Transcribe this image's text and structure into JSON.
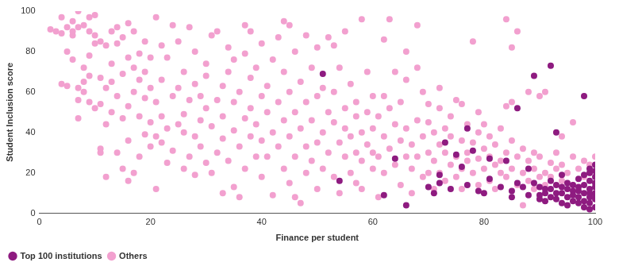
{
  "chart_data": {
    "type": "scatter",
    "x_label": "Finance per student",
    "y_label": "Student Inclusion score",
    "xlim": [
      0,
      100
    ],
    "xticks": [
      0,
      20,
      40,
      60,
      80,
      100
    ],
    "ylim": [
      0,
      100
    ],
    "yticks": [
      0,
      20,
      40,
      60,
      80,
      100
    ],
    "grid": false,
    "legend": "bottom-left",
    "marker": "circle",
    "series": [
      {
        "name": "Top 100 institutions",
        "color": "#8e1b80",
        "x": [
          51,
          54,
          62,
          64,
          66,
          70,
          71,
          72,
          72,
          73,
          74,
          75,
          76,
          77,
          77,
          78,
          79,
          80,
          81,
          81,
          83,
          84,
          85,
          85,
          86,
          86,
          87,
          88,
          88,
          89,
          89,
          90,
          90,
          91,
          91,
          92,
          92,
          92,
          93,
          93,
          93,
          94,
          94,
          94,
          95,
          95,
          95,
          96,
          96,
          96,
          97,
          97,
          97,
          97,
          98,
          98,
          98,
          98,
          98,
          99,
          99,
          99,
          99,
          99,
          99,
          100,
          100,
          100,
          100,
          100,
          100,
          100,
          99,
          98,
          97,
          96,
          95,
          94,
          93,
          92,
          91,
          90,
          100,
          99,
          100
        ],
        "values": [
          69,
          16,
          9,
          27,
          4,
          13,
          10,
          15,
          19,
          35,
          12,
          29,
          23,
          42,
          14,
          31,
          11,
          10,
          27,
          17,
          13,
          26,
          11,
          8,
          15,
          52,
          13,
          22,
          9,
          68,
          15,
          9,
          13,
          6,
          10,
          73,
          12,
          8,
          14,
          7,
          40,
          10,
          5,
          19,
          12,
          8,
          15,
          6,
          11,
          9,
          13,
          5,
          8,
          17,
          10,
          6,
          58,
          14,
          3,
          12,
          8,
          20,
          5,
          16,
          22,
          10,
          7,
          13,
          18,
          3,
          21,
          15,
          2,
          19,
          11,
          14,
          4,
          13,
          10,
          16,
          12,
          7,
          24,
          10,
          9
        ]
      },
      {
        "name": "Others",
        "color": "#f2a0cf",
        "x": [
          2,
          4,
          4,
          5,
          5,
          6,
          6,
          6,
          7,
          7,
          7,
          7,
          8,
          8,
          8,
          9,
          9,
          9,
          9,
          10,
          10,
          10,
          10,
          4,
          6,
          8,
          3,
          5,
          7,
          9,
          11,
          11,
          11,
          11,
          12,
          12,
          12,
          12,
          13,
          13,
          13,
          13,
          14,
          14,
          14,
          15,
          15,
          15,
          15,
          16,
          16,
          16,
          16,
          17,
          17,
          17,
          17,
          18,
          18,
          18,
          18,
          19,
          19,
          19,
          20,
          20,
          20,
          20,
          11,
          14,
          16,
          19,
          21,
          21,
          21,
          21,
          22,
          22,
          22,
          23,
          23,
          23,
          24,
          24,
          24,
          25,
          25,
          25,
          26,
          26,
          26,
          27,
          27,
          27,
          28,
          28,
          28,
          28,
          29,
          29,
          30,
          30,
          30,
          30,
          22,
          26,
          29,
          31,
          31,
          31,
          32,
          32,
          32,
          33,
          33,
          33,
          34,
          34,
          34,
          35,
          35,
          35,
          35,
          36,
          36,
          36,
          37,
          37,
          37,
          38,
          38,
          38,
          38,
          39,
          39,
          39,
          40,
          40,
          40,
          40,
          33,
          37,
          41,
          41,
          41,
          42,
          42,
          42,
          43,
          43,
          43,
          44,
          44,
          44,
          45,
          45,
          45,
          45,
          46,
          46,
          46,
          47,
          47,
          47,
          48,
          48,
          48,
          48,
          49,
          49,
          49,
          50,
          50,
          50,
          50,
          44,
          46,
          51,
          51,
          51,
          52,
          52,
          52,
          53,
          53,
          53,
          54,
          54,
          54,
          55,
          55,
          55,
          55,
          56,
          56,
          56,
          57,
          57,
          57,
          58,
          58,
          58,
          58,
          59,
          59,
          59,
          60,
          60,
          60,
          60,
          53,
          57,
          61,
          61,
          61,
          62,
          62,
          62,
          63,
          63,
          63,
          64,
          64,
          64,
          65,
          65,
          65,
          66,
          66,
          66,
          67,
          67,
          67,
          68,
          68,
          68,
          69,
          69,
          69,
          70,
          70,
          70,
          70,
          62,
          66,
          68,
          71,
          71,
          71,
          72,
          72,
          72,
          73,
          73,
          73,
          74,
          74,
          74,
          75,
          75,
          75,
          76,
          76,
          76,
          77,
          77,
          77,
          78,
          78,
          78,
          79,
          79,
          79,
          80,
          80,
          80,
          72,
          76,
          79,
          81,
          81,
          81,
          82,
          82,
          82,
          83,
          83,
          83,
          84,
          84,
          84,
          85,
          85,
          85,
          86,
          86,
          86,
          87,
          87,
          87,
          88,
          88,
          88,
          89,
          89,
          89,
          90,
          90,
          90,
          85,
          84,
          91,
          91,
          92,
          92,
          93,
          93,
          94,
          94,
          95,
          96,
          96,
          97,
          98,
          98,
          99,
          99,
          100,
          91,
          94,
          96
        ],
        "values": [
          91,
          97,
          89,
          63,
          80,
          95,
          88,
          90,
          92,
          100,
          47,
          56,
          65,
          93,
          60,
          90,
          78,
          68,
          97,
          88,
          52,
          98,
          84,
          64,
          76,
          72,
          90,
          92,
          62,
          55,
          30,
          32,
          67,
          85,
          18,
          44,
          62,
          83,
          50,
          90,
          74,
          65,
          58,
          30,
          84,
          22,
          47,
          69,
          87,
          36,
          16,
          53,
          77,
          20,
          60,
          72,
          90,
          48,
          28,
          66,
          79,
          39,
          57,
          85,
          45,
          62,
          33,
          77,
          54,
          92,
          94,
          70,
          38,
          12,
          55,
          97,
          48,
          66,
          83,
          25,
          42,
          77,
          93,
          31,
          58,
          44,
          62,
          85,
          22,
          49,
          70,
          28,
          56,
          92,
          38,
          19,
          64,
          80,
          46,
          33,
          68,
          52,
          74,
          25,
          35,
          40,
          58,
          43,
          88,
          20,
          56,
          30,
          90,
          63,
          37,
          48,
          82,
          26,
          70,
          41,
          55,
          13,
          76,
          8,
          33,
          60,
          47,
          22,
          79,
          52,
          38,
          67,
          90,
          44,
          28,
          72,
          36,
          58,
          18,
          84,
          10,
          93,
          50,
          28,
          63,
          9,
          40,
          76,
          55,
          33,
          87,
          22,
          46,
          70,
          60,
          38,
          15,
          93,
          50,
          28,
          80,
          42,
          65,
          5,
          33,
          55,
          20,
          88,
          46,
          26,
          72,
          35,
          58,
          12,
          82,
          95,
          8,
          62,
          40,
          22,
          50,
          30,
          87,
          60,
          18,
          45,
          35,
          72,
          10,
          52,
          28,
          42,
          90,
          38,
          20,
          64,
          48,
          30,
          55,
          40,
          12,
          96,
          26,
          50,
          34,
          70,
          42,
          22,
          58,
          30,
          83,
          15,
          48,
          28,
          8,
          38,
          20,
          86,
          52,
          32,
          96,
          44,
          24,
          70,
          36,
          14,
          55,
          28,
          42,
          66,
          34,
          22,
          10,
          46,
          28,
          93,
          38,
          18,
          60,
          30,
          45,
          20,
          54,
          58,
          80,
          72,
          26,
          40,
          12,
          34,
          20,
          52,
          30,
          42,
          16,
          24,
          38,
          48,
          28,
          18,
          56,
          36,
          22,
          12,
          30,
          44,
          26,
          20,
          35,
          85,
          27,
          14,
          40,
          22,
          32,
          44,
          62,
          54,
          50,
          28,
          16,
          38,
          24,
          34,
          12,
          26,
          42,
          20,
          30,
          18,
          96,
          22,
          36,
          55,
          14,
          28,
          90,
          20,
          32,
          4,
          26,
          16,
          60,
          22,
          30,
          12,
          18,
          28,
          58,
          82,
          53,
          20,
          14,
          25,
          18,
          22,
          30,
          16,
          24,
          20,
          28,
          14,
          22,
          18,
          26,
          20,
          24,
          28,
          60,
          38,
          45
        ]
      }
    ]
  }
}
